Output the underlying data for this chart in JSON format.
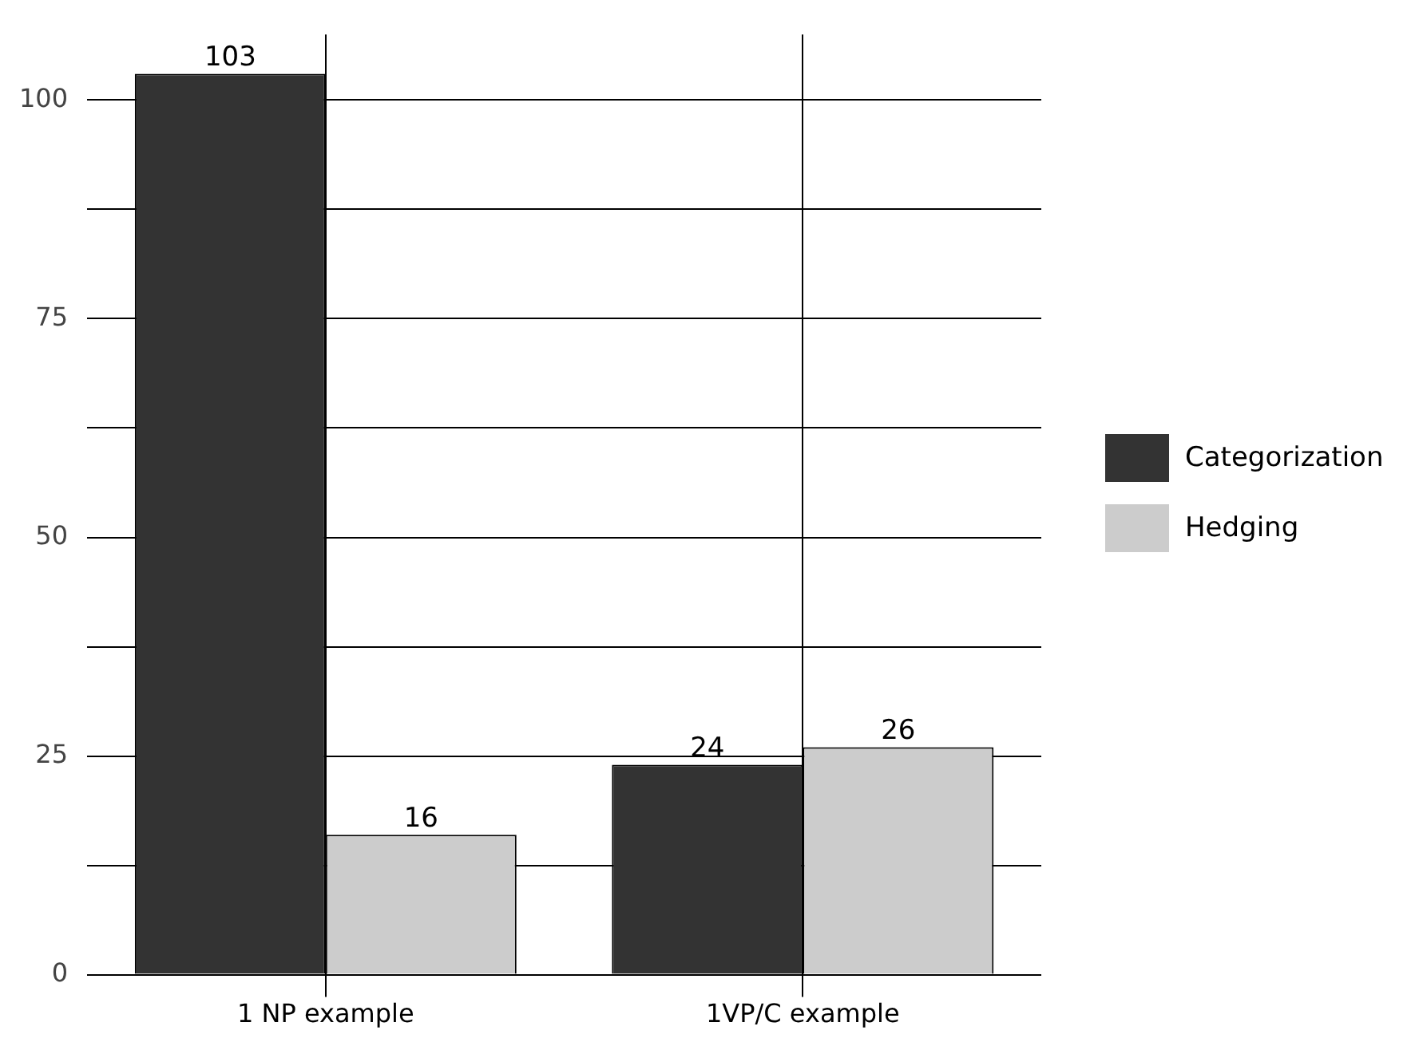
{
  "chart_data": {
    "type": "bar",
    "categories": [
      "1 NP example",
      "1VP/C example"
    ],
    "series": [
      {
        "name": "Categorization",
        "color": "#333333",
        "values": [
          103,
          24
        ]
      },
      {
        "name": "Hedging",
        "color": "#cccccc",
        "values": [
          16,
          26
        ]
      }
    ],
    "ylim": [
      0,
      107.5
    ],
    "yticks": [
      0,
      {
        "value": 12.5,
        "label": null
      },
      25,
      {
        "value": 37.5,
        "label": null
      },
      50,
      {
        "value": 62.5,
        "label": null
      },
      75,
      {
        "value": 87.5,
        "label": null
      },
      100
    ],
    "grid": true,
    "legend": "right",
    "data_labels": true
  }
}
